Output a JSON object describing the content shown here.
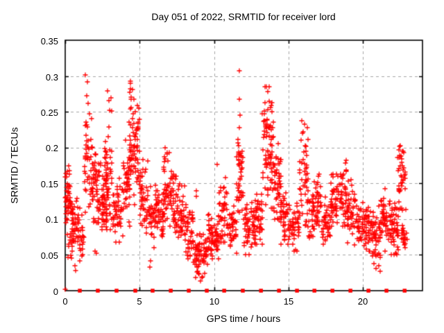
{
  "chart_data": {
    "type": "scatter",
    "title": "Day 051 of 2022, SRMTID for receiver lord",
    "xlabel": "GPS time / hours",
    "ylabel": "SRMTID / TECUs",
    "xlim": [
      0,
      24
    ],
    "ylim": [
      0,
      0.35
    ],
    "xticks": [
      0,
      5,
      10,
      15,
      20
    ],
    "yticks": [
      0,
      0.05,
      0.1,
      0.15,
      0.2,
      0.25,
      0.3,
      0.35
    ],
    "xtick_labels": [
      "0",
      "5",
      "10",
      "15",
      "20"
    ],
    "ytick_labels": [
      "0",
      "0.05",
      "0.1",
      "0.15",
      "0.2",
      "0.25",
      "0.3",
      "0.35"
    ],
    "grid": true,
    "legend": "none",
    "background": "#ffffff",
    "marker_color": "#ff0000",
    "grid_color": "#a5a5a5",
    "border_color": "#000000",
    "seed": 20220051,
    "clusters_format": [
      "x_start_hours",
      "x_end_hours",
      "n_points",
      "y_center",
      "y_sigma",
      "y_min",
      "y_max"
    ],
    "series": [
      {
        "name": "srmtid",
        "marker": "plus",
        "clusters": [
          [
            0.0,
            0.35,
            45,
            0.125,
            0.027,
            0.075,
            0.178
          ],
          [
            0.15,
            0.45,
            5,
            0.052,
            0.009,
            0.04,
            0.068
          ],
          [
            0.3,
            0.9,
            50,
            0.097,
            0.02,
            0.055,
            0.145
          ],
          [
            0.85,
            1.25,
            30,
            0.08,
            0.018,
            0.048,
            0.12
          ],
          [
            1.3,
            1.83,
            48,
            0.185,
            0.042,
            0.11,
            0.3
          ],
          [
            1.8,
            2.4,
            55,
            0.148,
            0.03,
            0.095,
            0.225
          ],
          [
            2.4,
            2.85,
            42,
            0.115,
            0.02,
            0.07,
            0.16
          ],
          [
            2.65,
            3.15,
            50,
            0.165,
            0.04,
            0.085,
            0.275
          ],
          [
            3.2,
            3.9,
            48,
            0.11,
            0.022,
            0.068,
            0.165
          ],
          [
            3.9,
            4.35,
            40,
            0.14,
            0.03,
            0.09,
            0.21
          ],
          [
            4.3,
            5.0,
            78,
            0.2,
            0.04,
            0.12,
            0.29
          ],
          [
            5.0,
            5.6,
            45,
            0.13,
            0.026,
            0.08,
            0.185
          ],
          [
            5.6,
            6.1,
            35,
            0.105,
            0.02,
            0.06,
            0.15
          ],
          [
            6.1,
            6.6,
            40,
            0.105,
            0.018,
            0.07,
            0.148
          ],
          [
            6.6,
            7.3,
            60,
            0.14,
            0.026,
            0.09,
            0.198
          ],
          [
            7.3,
            8.0,
            55,
            0.108,
            0.022,
            0.06,
            0.163
          ],
          [
            8.0,
            8.7,
            50,
            0.08,
            0.02,
            0.04,
            0.128
          ],
          [
            8.7,
            9.6,
            65,
            0.05,
            0.016,
            0.018,
            0.098
          ],
          [
            9.6,
            10.3,
            55,
            0.075,
            0.015,
            0.045,
            0.115
          ],
          [
            10.3,
            10.9,
            45,
            0.105,
            0.022,
            0.068,
            0.168
          ],
          [
            10.9,
            11.5,
            40,
            0.085,
            0.018,
            0.05,
            0.128
          ],
          [
            11.5,
            12.0,
            45,
            0.16,
            0.033,
            0.1,
            0.235
          ],
          [
            12.0,
            12.7,
            50,
            0.085,
            0.018,
            0.05,
            0.128
          ],
          [
            12.7,
            13.25,
            45,
            0.1,
            0.02,
            0.065,
            0.148
          ],
          [
            13.25,
            14.0,
            80,
            0.195,
            0.045,
            0.115,
            0.285
          ],
          [
            14.0,
            14.5,
            50,
            0.148,
            0.028,
            0.1,
            0.215
          ],
          [
            14.5,
            15.1,
            45,
            0.105,
            0.02,
            0.065,
            0.148
          ],
          [
            15.1,
            15.7,
            40,
            0.085,
            0.017,
            0.055,
            0.122
          ],
          [
            15.7,
            16.3,
            45,
            0.16,
            0.035,
            0.09,
            0.238
          ],
          [
            16.3,
            16.7,
            30,
            0.1,
            0.02,
            0.06,
            0.14
          ],
          [
            16.7,
            17.2,
            40,
            0.123,
            0.02,
            0.05,
            0.163
          ],
          [
            17.2,
            17.8,
            40,
            0.095,
            0.017,
            0.06,
            0.133
          ],
          [
            17.8,
            18.3,
            40,
            0.12,
            0.021,
            0.08,
            0.163
          ],
          [
            18.3,
            18.9,
            45,
            0.138,
            0.024,
            0.09,
            0.183
          ],
          [
            18.9,
            19.5,
            45,
            0.113,
            0.022,
            0.06,
            0.163
          ],
          [
            19.5,
            20.3,
            55,
            0.09,
            0.018,
            0.05,
            0.128
          ],
          [
            20.3,
            21.2,
            70,
            0.079,
            0.018,
            0.028,
            0.118
          ],
          [
            21.2,
            21.9,
            50,
            0.097,
            0.02,
            0.055,
            0.143
          ],
          [
            21.9,
            22.4,
            45,
            0.085,
            0.018,
            0.05,
            0.128
          ],
          [
            22.3,
            22.85,
            40,
            0.163,
            0.026,
            0.115,
            0.203
          ],
          [
            22.55,
            23.0,
            25,
            0.08,
            0.015,
            0.05,
            0.113
          ]
        ],
        "outliers": [
          [
            0.02,
            0.002
          ],
          [
            0.65,
            0.035
          ],
          [
            0.7,
            0.028
          ],
          [
            1.0,
            0.042
          ],
          [
            1.37,
            0.302
          ],
          [
            1.5,
            0.292
          ],
          [
            1.45,
            0.272
          ],
          [
            1.55,
            0.262
          ],
          [
            1.62,
            0.247
          ],
          [
            2.0,
            0.055
          ],
          [
            2.1,
            0.052
          ],
          [
            2.85,
            0.279
          ],
          [
            2.95,
            0.266
          ],
          [
            3.0,
            0.252
          ],
          [
            4.38,
            0.293
          ],
          [
            4.5,
            0.281
          ],
          [
            4.62,
            0.268
          ],
          [
            5.68,
            0.033
          ],
          [
            5.75,
            0.042
          ],
          [
            6.7,
            0.2
          ],
          [
            6.85,
            0.193
          ],
          [
            8.5,
            0.1
          ],
          [
            8.8,
            0.14
          ],
          [
            8.83,
            0.132
          ],
          [
            9.1,
            0.014
          ],
          [
            9.22,
            0.019
          ],
          [
            9.35,
            0.024
          ],
          [
            10.2,
            0.176
          ],
          [
            11.7,
            0.307
          ],
          [
            11.72,
            0.268
          ],
          [
            11.74,
            0.245
          ],
          [
            11.68,
            0.228
          ],
          [
            13.5,
            0.285
          ],
          [
            13.62,
            0.278
          ],
          [
            13.7,
            0.265
          ],
          [
            15.9,
            0.238
          ],
          [
            16.0,
            0.222
          ],
          [
            20.9,
            0.031
          ],
          [
            21.05,
            0.035
          ],
          [
            21.15,
            0.027
          ],
          [
            22.45,
            0.202
          ]
        ]
      },
      {
        "name": "hour-markers",
        "marker": "square",
        "y": 0,
        "x": [
          0.98,
          2.19,
          3.45,
          4.71,
          5.87,
          7.09,
          8.3,
          9.51,
          10.68,
          11.93,
          13.15,
          14.36,
          15.57,
          16.74,
          17.95,
          19.16,
          20.37,
          21.58,
          22.8
        ]
      }
    ]
  }
}
